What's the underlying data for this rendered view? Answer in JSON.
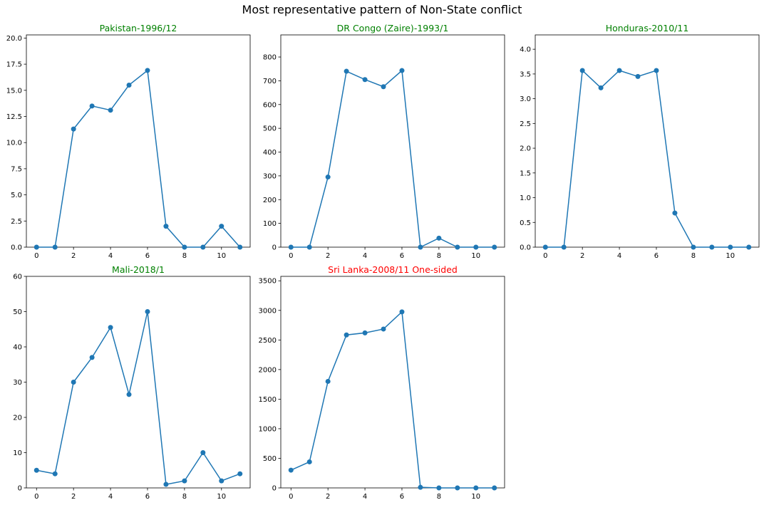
{
  "figure": {
    "title": "Most representative pattern of Non-State conflict"
  },
  "chart_data": [
    {
      "type": "line",
      "title": "Pakistan-1996/12",
      "title_color": "#008000",
      "x": [
        0,
        1,
        2,
        3,
        4,
        5,
        6,
        7,
        8,
        9,
        10,
        11
      ],
      "series": [
        {
          "values": [
            0,
            0,
            11.3,
            13.5,
            13.1,
            15.5,
            16.9,
            2,
            0,
            0,
            2,
            0
          ],
          "color": "#1f77b4",
          "marker": "circle"
        }
      ],
      "xlim": [
        -0.55,
        11.55
      ],
      "ylim": [
        0,
        20.3
      ],
      "xticks": [
        0,
        2,
        4,
        6,
        8,
        10
      ],
      "yticks": [
        0,
        2.5,
        5,
        7.5,
        10,
        12.5,
        15,
        17.5,
        20
      ],
      "ytick_labels": [
        "0.0",
        "2.5",
        "5.0",
        "7.5",
        "10.0",
        "12.5",
        "15.0",
        "17.5",
        "20.0"
      ],
      "xlabel": "",
      "ylabel": ""
    },
    {
      "type": "line",
      "title": "DR Congo (Zaire)-1993/1",
      "title_color": "#008000",
      "x": [
        0,
        1,
        2,
        3,
        4,
        5,
        6,
        7,
        8,
        9,
        10,
        11
      ],
      "series": [
        {
          "values": [
            0,
            0,
            295,
            740,
            705,
            675,
            743,
            0,
            38,
            0,
            0,
            0
          ],
          "color": "#1f77b4",
          "marker": "circle"
        }
      ],
      "xlim": [
        -0.55,
        11.55
      ],
      "ylim": [
        0,
        893
      ],
      "xticks": [
        0,
        2,
        4,
        6,
        8,
        10
      ],
      "yticks": [
        0,
        100,
        200,
        300,
        400,
        500,
        600,
        700,
        800
      ],
      "ytick_labels": [
        "0",
        "100",
        "200",
        "300",
        "400",
        "500",
        "600",
        "700",
        "800"
      ],
      "xlabel": "",
      "ylabel": ""
    },
    {
      "type": "line",
      "title": "Honduras-2010/11",
      "title_color": "#008000",
      "x": [
        0,
        1,
        2,
        3,
        4,
        5,
        6,
        7,
        8,
        9,
        10,
        11
      ],
      "series": [
        {
          "values": [
            0,
            0,
            3.57,
            3.22,
            3.57,
            3.45,
            3.57,
            0.69,
            0,
            0,
            0,
            0
          ],
          "color": "#1f77b4",
          "marker": "circle"
        }
      ],
      "xlim": [
        -0.55,
        11.55
      ],
      "ylim": [
        0,
        4.29
      ],
      "xticks": [
        0,
        2,
        4,
        6,
        8,
        10
      ],
      "yticks": [
        0,
        0.5,
        1,
        1.5,
        2,
        2.5,
        3,
        3.5,
        4
      ],
      "ytick_labels": [
        "0.0",
        "0.5",
        "1.0",
        "1.5",
        "2.0",
        "2.5",
        "3.0",
        "3.5",
        "4.0"
      ],
      "xlabel": "",
      "ylabel": ""
    },
    {
      "type": "line",
      "title": "Mali-2018/1",
      "title_color": "#008000",
      "x": [
        0,
        1,
        2,
        3,
        4,
        5,
        6,
        7,
        8,
        9,
        10,
        11
      ],
      "series": [
        {
          "values": [
            5,
            4,
            30,
            37,
            45.5,
            26.5,
            50,
            1,
            2,
            10,
            2,
            4
          ],
          "color": "#1f77b4",
          "marker": "circle"
        }
      ],
      "xlim": [
        -0.55,
        11.55
      ],
      "ylim": [
        0,
        60
      ],
      "xticks": [
        0,
        2,
        4,
        6,
        8,
        10
      ],
      "yticks": [
        0,
        10,
        20,
        30,
        40,
        50,
        60
      ],
      "ytick_labels": [
        "0",
        "10",
        "20",
        "30",
        "40",
        "50",
        "60"
      ],
      "xlabel": "",
      "ylabel": ""
    },
    {
      "type": "line",
      "title": "Sri Lanka-2008/11 One-sided",
      "title_color": "#ff0000",
      "x": [
        0,
        1,
        2,
        3,
        4,
        5,
        6,
        7,
        8,
        9,
        10,
        11
      ],
      "series": [
        {
          "values": [
            300,
            440,
            1800,
            2585,
            2620,
            2685,
            2975,
            10,
            0,
            0,
            0,
            0
          ],
          "color": "#1f77b4",
          "marker": "circle"
        }
      ],
      "xlim": [
        -0.55,
        11.55
      ],
      "ylim": [
        0,
        3575
      ],
      "xticks": [
        0,
        2,
        4,
        6,
        8,
        10
      ],
      "yticks": [
        0,
        500,
        1000,
        1500,
        2000,
        2500,
        3000,
        3500
      ],
      "ytick_labels": [
        "0",
        "500",
        "1000",
        "1500",
        "2000",
        "2500",
        "3000",
        "3500"
      ],
      "xlabel": "",
      "ylabel": ""
    }
  ]
}
